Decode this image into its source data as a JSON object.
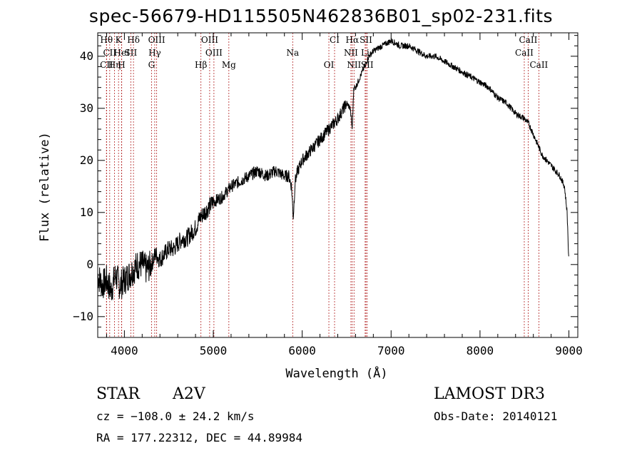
{
  "chart_data": {
    "type": "line",
    "title": "spec-56679-HD115505N462836B01_sp02-231.fits",
    "xlabel": "Wavelength (Å)",
    "ylabel": "Flux (relative)",
    "xlim": [
      3700,
      9100
    ],
    "ylim": [
      -14,
      44.5
    ],
    "xticks": [
      4000,
      5000,
      6000,
      7000,
      8000,
      9000
    ],
    "yticks": [
      -10,
      0,
      10,
      20,
      30,
      40
    ],
    "xtick_labels": [
      "4000",
      "5000",
      "6000",
      "7000",
      "8000",
      "9000"
    ],
    "ytick_labels": [
      "−10",
      "0",
      "10",
      "20",
      "30",
      "40"
    ],
    "grid": false,
    "series": [
      {
        "name": "spectrum",
        "x": [
          3700,
          3750,
          3800,
          3850,
          3900,
          3950,
          4000,
          4050,
          4100,
          4150,
          4200,
          4250,
          4300,
          4350,
          4400,
          4450,
          4500,
          4550,
          4600,
          4650,
          4700,
          4750,
          4800,
          4850,
          4900,
          4950,
          5000,
          5100,
          5200,
          5300,
          5400,
          5500,
          5600,
          5700,
          5800,
          5850,
          5880,
          5900,
          5920,
          5950,
          6000,
          6100,
          6200,
          6300,
          6400,
          6500,
          6540,
          6563,
          6580,
          6600,
          6650,
          6700,
          6750,
          6800,
          6900,
          7000,
          7100,
          7200,
          7300,
          7400,
          7500,
          7600,
          7700,
          7800,
          7900,
          8000,
          8100,
          8200,
          8300,
          8400,
          8500,
          8550,
          8600,
          8650,
          8700,
          8750,
          8800,
          8850,
          8900,
          8950,
          8980,
          9000
        ],
        "y": [
          -2,
          -4,
          -3,
          -5,
          -2,
          -4,
          -3,
          -2,
          -1,
          0,
          0,
          -1,
          0,
          2,
          1,
          2,
          3,
          3,
          4,
          5,
          5,
          6,
          7,
          9,
          10,
          11,
          12,
          13,
          15,
          16,
          17,
          18,
          17,
          18,
          17,
          17,
          15,
          9,
          16,
          18,
          20,
          22,
          24,
          26,
          28,
          31,
          30,
          26,
          34,
          34,
          36,
          38,
          40,
          41,
          42,
          43,
          42,
          42,
          41,
          40,
          40,
          39,
          38,
          37,
          36,
          35,
          34,
          32,
          31,
          29,
          28,
          27,
          25,
          23,
          21,
          20,
          19,
          18,
          17,
          15,
          10,
          0
        ]
      }
    ],
    "emission_lines": [
      {
        "name": "Hθ",
        "wavelength": 3798,
        "row": 1
      },
      {
        "name": "CII",
        "wavelength": 3835,
        "row": 2
      },
      {
        "name": "CII",
        "wavelength": 3800,
        "row": 3
      },
      {
        "name": "Hη",
        "wavelength": 3889,
        "row": 3
      },
      {
        "name": "K",
        "wavelength": 3934,
        "row": 1
      },
      {
        "name": "HeI",
        "wavelength": 3970,
        "row": 2
      },
      {
        "name": "H",
        "wavelength": 3969,
        "row": 3
      },
      {
        "name": "SII",
        "wavelength": 4072,
        "row": 2
      },
      {
        "name": "Hδ",
        "wavelength": 4102,
        "row": 1
      },
      {
        "name": "OIII",
        "wavelength": 4363,
        "row": 1
      },
      {
        "name": "Hγ",
        "wavelength": 4341,
        "row": 2
      },
      {
        "name": "G",
        "wavelength": 4305,
        "row": 3
      },
      {
        "name": "Hβ",
        "wavelength": 4861,
        "row": 3
      },
      {
        "name": "OIII",
        "wavelength": 4959,
        "row": 1
      },
      {
        "name": "OIII",
        "wavelength": 5007,
        "row": 2
      },
      {
        "name": "Mg",
        "wavelength": 5175,
        "row": 3
      },
      {
        "name": "Na",
        "wavelength": 5893,
        "row": 2
      },
      {
        "name": "OI",
        "wavelength": 6300,
        "row": 3
      },
      {
        "name": "CI",
        "wavelength": 6364,
        "row": 1
      },
      {
        "name": "Hα",
        "wavelength": 6563,
        "row": 1
      },
      {
        "name": "NII",
        "wavelength": 6548,
        "row": 2
      },
      {
        "name": "NII",
        "wavelength": 6583,
        "row": 3
      },
      {
        "name": "SII",
        "wavelength": 6717,
        "row": 1
      },
      {
        "name": "Li",
        "wavelength": 6708,
        "row": 2
      },
      {
        "name": "SII",
        "wavelength": 6731,
        "row": 3
      },
      {
        "name": "CaII",
        "wavelength": 8542,
        "row": 1
      },
      {
        "name": "CaII",
        "wavelength": 8498,
        "row": 2
      },
      {
        "name": "CaII",
        "wavelength": 8662,
        "row": 3
      }
    ]
  },
  "info": {
    "class": "STAR",
    "subclass": "A2V",
    "survey": "LAMOST DR3",
    "cz": "cz = −108.0 ± 24.2 km/s",
    "obs_date": "Obs-Date: 20140121",
    "coords": "RA = 177.22312, DEC =  44.89984"
  }
}
